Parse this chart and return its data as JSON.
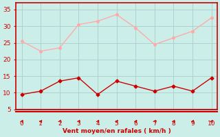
{
  "x": [
    0,
    1,
    2,
    3,
    4,
    5,
    6,
    7,
    8,
    9,
    10
  ],
  "y_rafales": [
    25.5,
    22.5,
    23.5,
    30.5,
    31.5,
    33.5,
    29.5,
    24.5,
    26.5,
    28.5,
    32.5
  ],
  "y_moyen": [
    9.5,
    10.5,
    13.5,
    14.5,
    9.5,
    13.5,
    12.0,
    10.5,
    12.0,
    10.5,
    14.5
  ],
  "color_rafales": "#ffaaaa",
  "color_moyen": "#cc0000",
  "bg_color": "#cceee8",
  "grid_color": "#aacccc",
  "xlabel": "Vent moyen/en rafales ( km/h )",
  "xlabel_color": "#cc0000",
  "tick_color": "#cc0000",
  "spine_color": "#cc0000",
  "ylim": [
    5,
    37
  ],
  "xlim": [
    -0.3,
    10.3
  ],
  "yticks": [
    5,
    10,
    15,
    20,
    25,
    30,
    35
  ],
  "xticks": [
    0,
    1,
    2,
    3,
    4,
    5,
    6,
    7,
    8,
    9,
    10
  ]
}
